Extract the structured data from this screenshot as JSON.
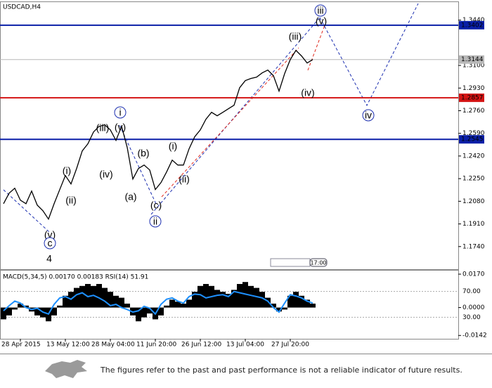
{
  "chart_data": [
    {
      "type": "line",
      "title": "USDCAD,H4",
      "color": "#000000",
      "categories": [
        null,
        null,
        null,
        "28 Apr 2015",
        null,
        null,
        null,
        null,
        null,
        null,
        null,
        "13 May 12:00",
        null,
        null,
        null,
        null,
        null,
        null,
        null,
        "28 May 04:00",
        null,
        null,
        null,
        null,
        null,
        null,
        null,
        "11 Jun 20:00",
        null,
        null,
        null,
        null,
        null,
        null,
        null,
        "26 Jun 12:00",
        null,
        null,
        null,
        null,
        null,
        null,
        null,
        "13 Jul 04:00",
        null,
        null,
        null,
        null,
        null,
        null,
        null,
        "27 Jul 20:00",
        null,
        null,
        null,
        null
      ],
      "values": [
        1.2062,
        1.2141,
        1.2178,
        1.2088,
        1.2062,
        1.2157,
        1.2051,
        1.2009,
        1.1946,
        1.2062,
        1.2168,
        1.2273,
        1.221,
        1.2326,
        1.2458,
        1.2511,
        1.26,
        1.2643,
        1.2653,
        1.2616,
        1.2537,
        1.2643,
        1.2484,
        1.2247,
        1.2326,
        1.2352,
        1.2315,
        1.2168,
        1.222,
        1.23,
        1.2389,
        1.2352,
        1.2352,
        1.2474,
        1.2564,
        1.2616,
        1.2696,
        1.2748,
        1.2722,
        1.2748,
        1.2775,
        1.2801,
        1.2933,
        1.2986,
        1.3002,
        1.3012,
        1.3044,
        1.3065,
        1.3023,
        1.2907,
        1.3039,
        1.3144,
        1.3213,
        1.3171,
        1.3118,
        1.3144
      ],
      "ylim": [
        1.157,
        1.357
      ],
      "yticks": [
        {
          "value": 1.174,
          "label": "1.1740"
        },
        {
          "value": 1.191,
          "label": "1.1910"
        },
        {
          "value": 1.208,
          "label": "1.2080"
        },
        {
          "value": 1.225,
          "label": "1.2250"
        },
        {
          "value": 1.242,
          "label": "1.2420"
        },
        {
          "value": 1.259,
          "label": "1.2590"
        },
        {
          "value": 1.276,
          "label": "1.2760"
        },
        {
          "value": 1.293,
          "label": "1.2930"
        },
        {
          "value": 1.31,
          "label": "1.3100"
        },
        {
          "value": 1.344,
          "label": "1.3440"
        }
      ],
      "levels": [
        {
          "value": 1.3402,
          "color": "#0a1fa8"
        },
        {
          "value": 1.3144,
          "color": "#b8b8b8"
        },
        {
          "value": 1.2857,
          "color": "#d41414"
        },
        {
          "value": 1.2545,
          "color": "#0a1fa8"
        }
      ],
      "annotations": [
        {
          "text": "iii",
          "color": "#1c2fb0",
          "circled": true
        },
        {
          "text": "(v)",
          "color": "#e0281c"
        },
        {
          "text": "(iii)",
          "color": "#e0281c"
        },
        {
          "text": "(iv)",
          "color": "#e0281c"
        },
        {
          "text": "iv",
          "color": "#1c2fb0",
          "circled": true
        },
        {
          "text": "i",
          "color": "#1c2fb0",
          "circled": true
        },
        {
          "text": "(iii)",
          "color": "#e0281c"
        },
        {
          "text": "(v)",
          "color": "#e0281c"
        },
        {
          "text": "(b)",
          "color": "#e0281c"
        },
        {
          "text": "(iv)",
          "color": "#e0281c"
        },
        {
          "text": "(i)",
          "color": "#e0281c"
        },
        {
          "text": "(ii)",
          "color": "#e0281c"
        },
        {
          "text": "(a)",
          "color": "#e0281c"
        },
        {
          "text": "(c)",
          "color": "#e0281c"
        },
        {
          "text": "ii",
          "color": "#1c2fb0",
          "circled": true
        },
        {
          "text": "(i)",
          "color": "#e0281c"
        },
        {
          "text": "(ii)",
          "color": "#e0281c"
        },
        {
          "text": "(v)",
          "color": "#e0281c"
        },
        {
          "text": "c",
          "color": "#1c2fb0",
          "circled": true
        },
        {
          "text": "4",
          "color": "#e0281c"
        }
      ],
      "time_marker": "17:00"
    },
    {
      "type": "bar",
      "title": "MACD(5,34,5) 0.00170 0.00183 RSI(14) 51.91",
      "series": [
        {
          "color": "#000000",
          "values": [
            -0.006,
            -0.004,
            -0.001,
            0.002,
            0.001,
            -0.002,
            -0.004,
            -0.005,
            -0.007,
            -0.004,
            0.001,
            0.006,
            0.008,
            0.01,
            0.011,
            0.012,
            0.011,
            0.012,
            0.01,
            0.008,
            0.006,
            0.005,
            0.002,
            -0.004,
            -0.007,
            -0.005,
            -0.003,
            -0.006,
            -0.004,
            0.001,
            0.004,
            0.003,
            0.002,
            0.004,
            0.008,
            0.011,
            0.012,
            0.011,
            0.009,
            0.008,
            0.007,
            0.009,
            0.012,
            0.013,
            0.011,
            0.01,
            0.008,
            0.005,
            0.002,
            -0.002,
            -0.001,
            0.006,
            0.008,
            0.006,
            0.004,
            0.002
          ]
        },
        {
          "color": "#1e90ff",
          "axis": "y2",
          "values": [
            40,
            48,
            55,
            52,
            45,
            42,
            44,
            38,
            35,
            50,
            60,
            62,
            58,
            65,
            68,
            62,
            64,
            60,
            55,
            48,
            50,
            45,
            42,
            38,
            40,
            47,
            44,
            35,
            50,
            58,
            60,
            55,
            52,
            62,
            66,
            65,
            60,
            62,
            64,
            65,
            62,
            70,
            68,
            66,
            64,
            62,
            60,
            55,
            45,
            38,
            52,
            65,
            63,
            60,
            55,
            52
          ]
        }
      ],
      "ylim": [
        -0.0159,
        0.0188
      ],
      "yticks": [
        {
          "value": 0.017,
          "label": "0.0170"
        },
        {
          "value": 0,
          "label": "0.0000"
        },
        {
          "value": -0.0142,
          "label": "-0.0142"
        }
      ],
      "y2lim": [
        -3.5,
        102.4
      ],
      "y2ticks": [
        {
          "value": 70,
          "label": "70.00"
        },
        {
          "value": 30,
          "label": "30.00"
        }
      ]
    }
  ],
  "footer": {
    "disclaimer": "The figures refer to the past and past performance is not a reliable indicator of future results."
  }
}
